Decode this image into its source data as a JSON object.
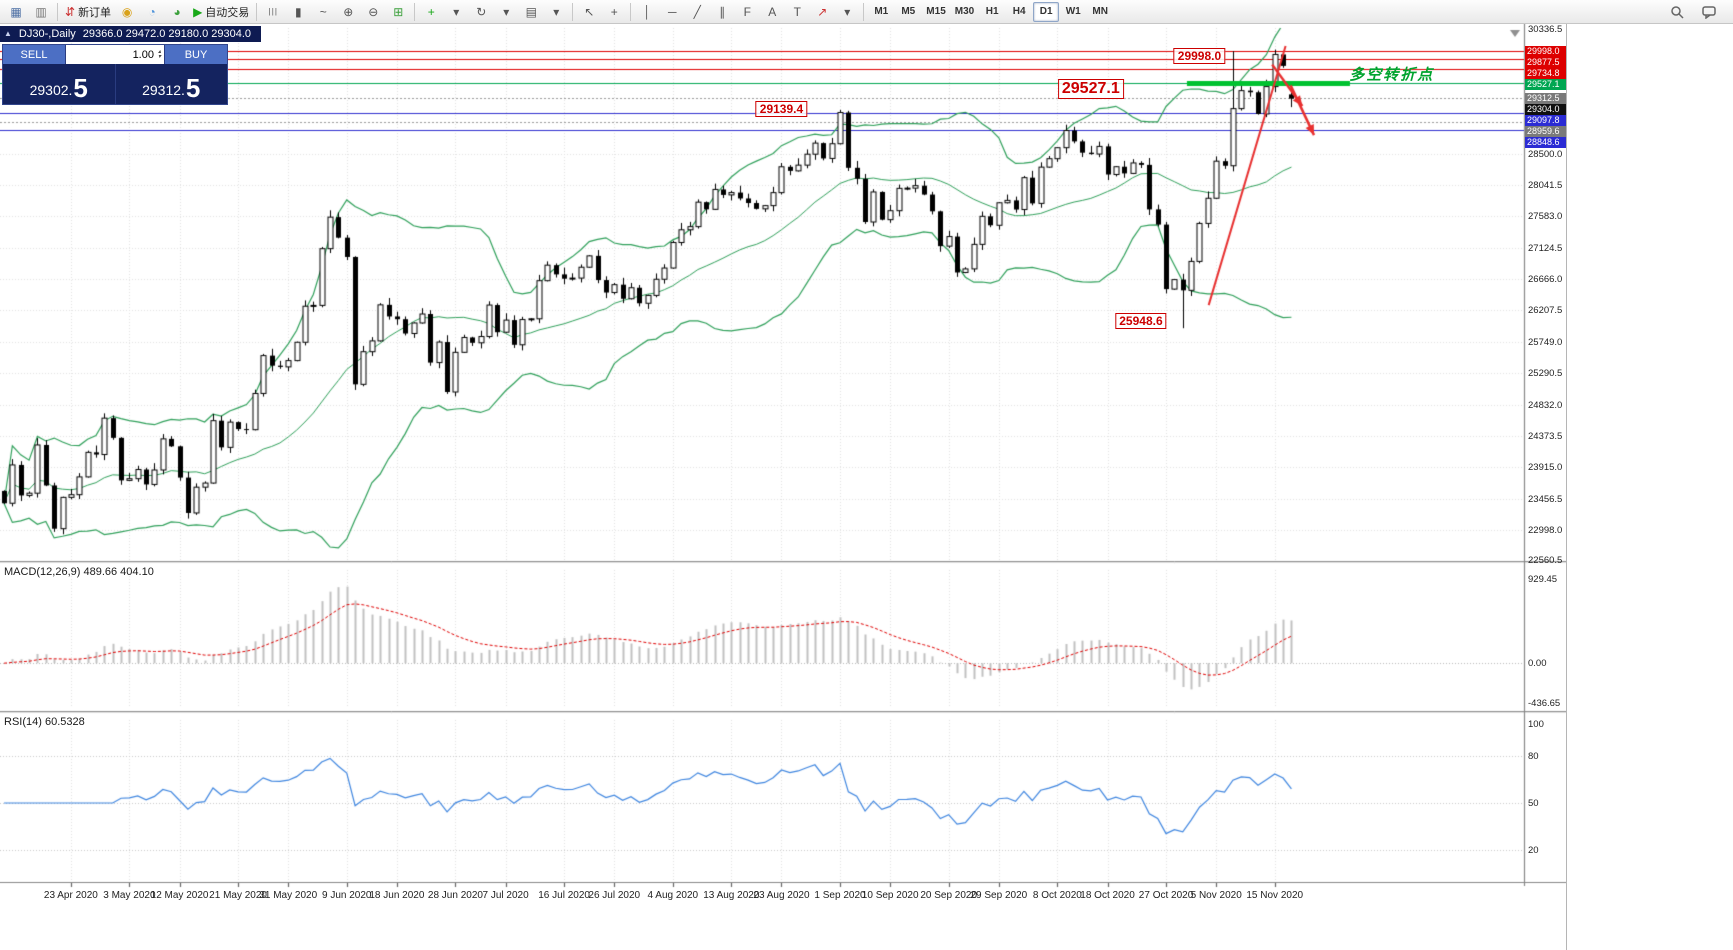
{
  "toolbar": {
    "items": [
      {
        "name": "new-chart",
        "glyph": "▦",
        "color": "#4a6da3"
      },
      {
        "name": "chart-profiles",
        "glyph": "▥",
        "color": "#777777"
      },
      {
        "sep": true
      },
      {
        "name": "new-order",
        "glyph": "⇵",
        "color": "#cc3333",
        "label": "新订单"
      },
      {
        "name": "mql5-funds",
        "glyph": "◉",
        "color": "#d9a21b"
      },
      {
        "name": "virtual-hosting",
        "glyph": "◔",
        "color": "#4a90d9"
      },
      {
        "name": "community",
        "glyph": "◕",
        "color": "#3ca03c"
      },
      {
        "name": "auto-trading",
        "glyph": "▶",
        "color": "#18a818",
        "label": "自动交易"
      },
      {
        "sep": true
      },
      {
        "name": "bar-chart-mode",
        "glyph": "|||",
        "color": "#555555"
      },
      {
        "name": "candlestick-mode",
        "glyph": "▮",
        "color": "#555555"
      },
      {
        "name": "line-chart-mode",
        "glyph": "~",
        "color": "#555555"
      },
      {
        "name": "zoom-in",
        "glyph": "⊕",
        "color": "#555555"
      },
      {
        "name": "zoom-out",
        "glyph": "⊖",
        "color": "#555555"
      },
      {
        "name": "tile-windows",
        "glyph": "⊞",
        "color": "#3ca03c"
      },
      {
        "sep": true
      },
      {
        "name": "indicators-list",
        "glyph": "+",
        "color": "#18a818"
      },
      {
        "name": "indicators-menu",
        "glyph": "▾",
        "color": "#555555"
      },
      {
        "name": "cycles",
        "glyph": "↻",
        "color": "#555555"
      },
      {
        "name": "cycles-menu",
        "glyph": "▾",
        "color": "#555555"
      },
      {
        "name": "templates",
        "glyph": "▤",
        "color": "#555555"
      },
      {
        "name": "templates-menu",
        "glyph": "▾",
        "color": "#555555"
      },
      {
        "sep": true
      },
      {
        "name": "cursor",
        "glyph": "↖",
        "color": "#555555"
      },
      {
        "name": "crosshair",
        "glyph": "+",
        "color": "#555555"
      },
      {
        "sep": true
      },
      {
        "name": "vertical-line",
        "glyph": "│",
        "color": "#555555"
      },
      {
        "name": "horizontal-line",
        "glyph": "─",
        "color": "#555555"
      },
      {
        "name": "trendline",
        "glyph": "╱",
        "color": "#555555"
      },
      {
        "name": "equidistant-channel",
        "glyph": "∥",
        "color": "#555555"
      },
      {
        "name": "fibonacci",
        "glyph": "F",
        "color": "#555555"
      },
      {
        "name": "text",
        "glyph": "A",
        "color": "#555555"
      },
      {
        "name": "text-label",
        "glyph": "T",
        "color": "#555555"
      },
      {
        "name": "arrows-tool",
        "glyph": "↗",
        "color": "#cc3333"
      },
      {
        "name": "arrows-menu",
        "glyph": "▾",
        "color": "#555555"
      },
      {
        "sep": true
      }
    ],
    "timeframes": [
      "M1",
      "M5",
      "M15",
      "M30",
      "H1",
      "H4",
      "D1",
      "W1",
      "MN"
    ],
    "active_timeframe": "D1"
  },
  "chart": {
    "collapse_icon": "▲",
    "symbol_label": "DJ30-,Daily",
    "ohlc_text": "29366.0 29472.0 29180.0 29304.0",
    "trade_panel": {
      "sell_label": "SELL",
      "buy_label": "BUY",
      "volume": "1.00",
      "spin_up": "▴",
      "spin_down": "▾",
      "sell_price_main": "29302.",
      "sell_price_big": "5",
      "buy_price_main": "29312.",
      "buy_price_big": "5"
    }
  },
  "chart_data": {
    "type": "candlestick",
    "title": "DJ30-,Daily",
    "symbol": "DJ30-",
    "period": "Daily",
    "last_ohlc": {
      "open": 29366.0,
      "high": 29472.0,
      "low": 29180.0,
      "close": 29304.0
    },
    "first_open": 23570,
    "closes": [
      23390,
      23950,
      23504,
      23537,
      24242,
      23650,
      23018,
      23476,
      23515,
      23775,
      24134,
      24102,
      24634,
      24346,
      23724,
      23749,
      23883,
      23665,
      23876,
      24331,
      24222,
      23765,
      23248,
      23625,
      23685,
      24597,
      24207,
      24576,
      24474,
      24465,
      24995,
      25548,
      25401,
      25383,
      25475,
      25743,
      26270,
      26282,
      27111,
      27572,
      27272,
      26990,
      25128,
      25605,
      25763,
      26290,
      26120,
      26080,
      25871,
      26025,
      26156,
      25446,
      25746,
      25016,
      25596,
      25813,
      25735,
      25827,
      26287,
      25890,
      26067,
      25706,
      26075,
      26086,
      26643,
      26870,
      26735,
      26672,
      26681,
      26840,
      27006,
      26652,
      26470,
      26585,
      26379,
      26540,
      26313,
      26428,
      26664,
      26828,
      27201,
      27387,
      27433,
      27791,
      27686,
      27977,
      27897,
      27931,
      27845,
      27778,
      27693,
      27740,
      27930,
      28308,
      28248,
      28332,
      28492,
      28654,
      28430,
      28645,
      29101,
      28293,
      28133,
      27501,
      27940,
      27535,
      27666,
      27993,
      27996,
      28032,
      27902,
      27657,
      27148,
      27288,
      26763,
      26815,
      27174,
      27584,
      27453,
      27782,
      27817,
      27683,
      28149,
      27773,
      28303,
      28426,
      28587,
      28838,
      28679,
      28514,
      28494,
      28606,
      28195,
      28309,
      28211,
      28364,
      28336,
      27685,
      27463,
      26520,
      26659,
      26502,
      26925,
      27480,
      27848,
      28390,
      28323,
      29158,
      29421,
      29397,
      29080,
      29480,
      29950,
      29783,
      29304
    ],
    "overrides": {
      "100": {
        "high": 29139.4
      },
      "141": {
        "low": 25948.6
      },
      "147": {
        "high": 29998.0
      },
      "154": {
        "open": 29366.0,
        "high": 29472.0,
        "low": 29180.0,
        "close": 29304.0
      }
    },
    "x_labels": [
      "23 Apr 2020",
      "3 May 2020",
      "12 May 2020",
      "21 May 2020",
      "31 May 2020",
      "9 Jun 2020",
      "18 Jun 2020",
      "28 Jun 2020",
      "7 Jul 2020",
      "16 Jul 2020",
      "26 Jul 2020",
      "4 Aug 2020",
      "13 Aug 2020",
      "23 Aug 2020",
      "1 Sep 2020",
      "10 Sep 2020",
      "20 Sep 2020",
      "29 Sep 2020",
      "8 Oct 2020",
      "18 Oct 2020",
      "27 Oct 2020",
      "5 Nov 2020",
      "15 Nov 2020"
    ],
    "y_axis": {
      "top": 30336.5,
      "bottom": 22560.5,
      "ticks": [
        30336.5,
        28500.0,
        28041.5,
        27583.0,
        27124.5,
        26666.0,
        26207.5,
        25749.0,
        25290.5,
        24832.0,
        24373.5,
        23915.0,
        23456.5,
        22998.0,
        22560.5
      ]
    },
    "price_tags": [
      {
        "value": 29998.0,
        "bg": "#dd0000"
      },
      {
        "value": 29877.5,
        "bg": "#dd0000"
      },
      {
        "value": 29734.8,
        "bg": "#dd0000"
      },
      {
        "value": 29527.1,
        "bg": "#00a651"
      },
      {
        "value": 29312.5,
        "bg": "#7a7a7a"
      },
      {
        "value": 29304.0,
        "bg": "#101010"
      },
      {
        "value": 29097.8,
        "bg": "#2b2bd4"
      },
      {
        "value": 28959.6,
        "bg": "#7a7a7a"
      },
      {
        "value": 28848.6,
        "bg": "#2b2bd4"
      }
    ],
    "levels": [
      {
        "price": 29998.0,
        "color": "#e00000",
        "width": 1
      },
      {
        "price": 29877.5,
        "color": "#e00000",
        "width": 1
      },
      {
        "price": 29734.8,
        "color": "#e00000",
        "width": 1
      },
      {
        "price": 29527.1,
        "color": "#00a651",
        "width": 1
      },
      {
        "price": 29312.5,
        "color": "#999999",
        "width": 1,
        "dash": true
      },
      {
        "price": 29097.8,
        "color": "#3030d0",
        "width": 1
      },
      {
        "price": 28959.6,
        "color": "#999999",
        "width": 1,
        "dash": true
      },
      {
        "price": 28848.6,
        "color": "#3030d0",
        "width": 1
      }
    ],
    "bollinger": {
      "period": 20,
      "deviation": 2,
      "color": "#2fa05a"
    },
    "indicators": {
      "macd": {
        "label": "MACD(12,26,9) 489.66 404.10",
        "fast": 12,
        "slow": 26,
        "signal": 9,
        "current": [
          489.66,
          404.1
        ],
        "range": [
          -470,
          980
        ],
        "ticks": [
          {
            "label": "929.45",
            "value": 929.45
          },
          {
            "label": "0.00",
            "value": 0
          },
          {
            "label": "-436.65",
            "value": -436.65
          }
        ],
        "bar_color": "#c2c2c2",
        "signal_color": "#e00000"
      },
      "rsi": {
        "label": "RSI(14) 60.5328",
        "period": 14,
        "current": 60.5328,
        "color": "#3f86e0",
        "levels": [
          80,
          50,
          20
        ],
        "ticks": [
          {
            "label": "100",
            "value": 100
          },
          {
            "label": "80",
            "value": 80
          },
          {
            "label": "50",
            "value": 50
          },
          {
            "label": "20",
            "value": 20
          }
        ]
      }
    },
    "annotations": [
      {
        "text": "29998.0",
        "index": 143,
        "price": 29930,
        "size": 12
      },
      {
        "text": "29527.1",
        "index": 130,
        "price": 29450,
        "size": 16
      },
      {
        "text": "29139.4",
        "index": 93,
        "price": 29150,
        "size": 12
      },
      {
        "text": "25948.6",
        "index": 136,
        "price": 26050,
        "size": 12
      }
    ],
    "drawings": {
      "support_segment": {
        "price": 29527.1,
        "from_index": 141.5,
        "to_index": 161,
        "color": "#00c230",
        "width": 5
      },
      "trendline": {
        "from_index": 144.1,
        "from_price": 26286,
        "to_index": 153.3,
        "to_price": 30073,
        "color": "#e83030",
        "width": 2
      },
      "arrows": [
        {
          "from_index": 151.7,
          "from_price": 29801,
          "to_index": 155.3,
          "to_price": 29195,
          "color": "#e83030"
        },
        {
          "from_index": 153.9,
          "from_price": 29498,
          "to_index": 156.7,
          "to_price": 28771,
          "color": "#e83030"
        }
      ],
      "note": {
        "text": "多空转折点",
        "index": 166,
        "price": 29660,
        "color": "#00a32e",
        "size": 15
      }
    }
  }
}
